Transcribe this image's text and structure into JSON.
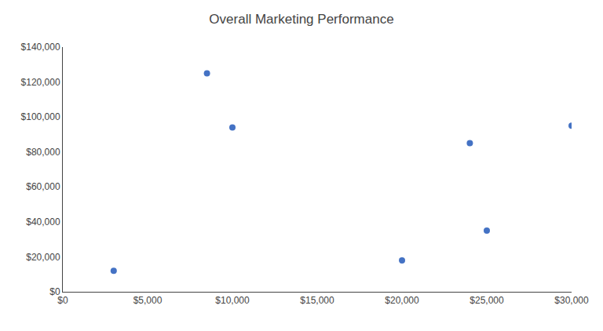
{
  "chart_data": {
    "type": "scatter",
    "title": "Overall Marketing Performance",
    "x": [
      3000,
      8500,
      10000,
      20000,
      24000,
      25000,
      30000
    ],
    "values": [
      12000,
      125000,
      94000,
      18000,
      85000,
      35000,
      95000
    ],
    "color": "#4472C4",
    "xlim": [
      0,
      30000
    ],
    "xticks": [
      {
        "value": 0,
        "label": "$0"
      },
      {
        "value": 5000,
        "label": "$5,000"
      },
      {
        "value": 10000,
        "label": "$10,000"
      },
      {
        "value": 15000,
        "label": "$15,000"
      },
      {
        "value": 20000,
        "label": "$20,000"
      },
      {
        "value": 25000,
        "label": "$25,000"
      },
      {
        "value": 30000,
        "label": "$30,000"
      }
    ],
    "ylim": [
      0,
      140000
    ],
    "yticks": [
      {
        "value": 0,
        "label": "$0"
      },
      {
        "value": 20000,
        "label": "$20,000"
      },
      {
        "value": 40000,
        "label": "$40,000"
      },
      {
        "value": 60000,
        "label": "$60,000"
      },
      {
        "value": 80000,
        "label": "$80,000"
      },
      {
        "value": 100000,
        "label": "$100,000"
      },
      {
        "value": 120000,
        "label": "$120,000"
      },
      {
        "value": 140000,
        "label": "$140,000"
      }
    ],
    "grid": false
  }
}
